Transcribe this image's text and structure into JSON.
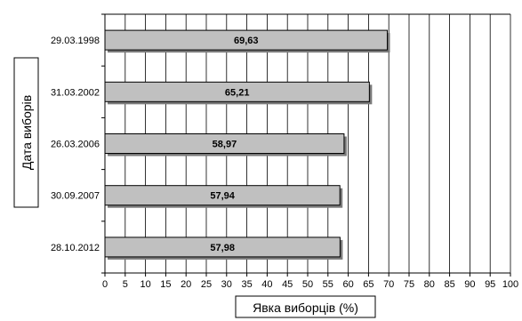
{
  "chart_data": {
    "type": "bar",
    "orientation": "horizontal",
    "categories": [
      "29.03.1998",
      "31.03.2002",
      "26.03.2006",
      "30.09.2007",
      "28.10.2012"
    ],
    "values": [
      69.63,
      65.21,
      58.97,
      57.94,
      57.98
    ],
    "value_labels": [
      "69,63",
      "65,21",
      "58,97",
      "57,94",
      "57,98"
    ],
    "xlabel": "Явка виборців (%)",
    "ylabel": "Дата виборів",
    "xlim": [
      0,
      100
    ],
    "xticks": [
      "0",
      "5",
      "10",
      "15",
      "20",
      "25",
      "30",
      "35",
      "40",
      "45",
      "50",
      "55",
      "60",
      "65",
      "70",
      "75",
      "80",
      "85",
      "90",
      "95",
      "100"
    ],
    "grid": true,
    "bar_color": "#c0c0c0"
  }
}
